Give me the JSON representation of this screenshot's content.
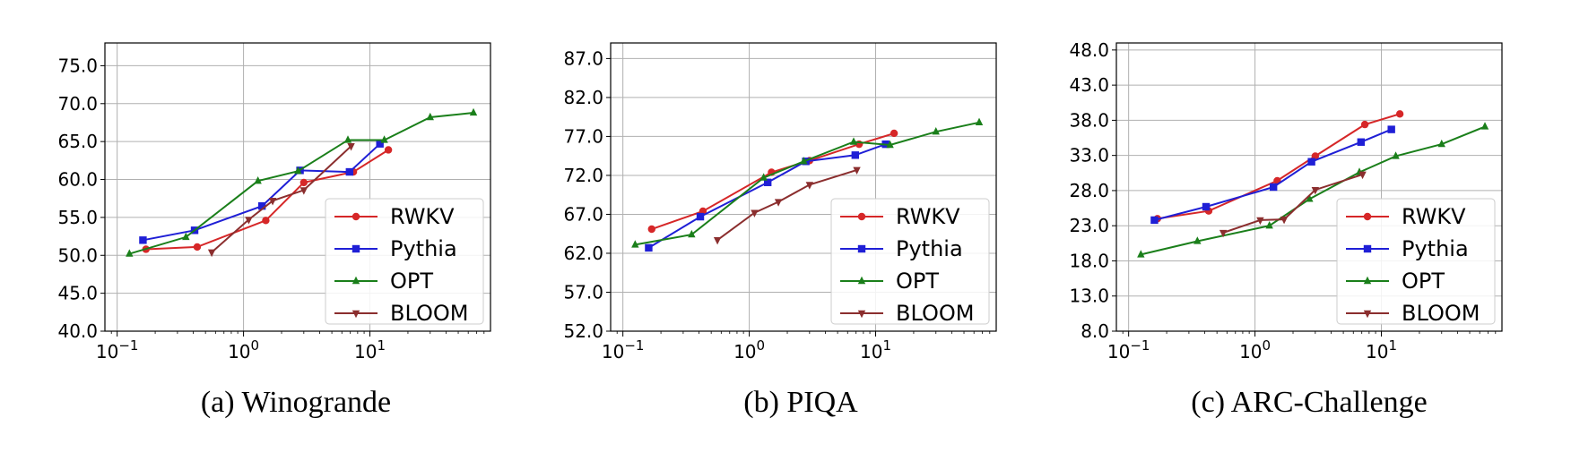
{
  "colors": {
    "RWKV": "#d62728",
    "Pythia": "#1f1fd6",
    "OPT": "#1a7f1a",
    "BLOOM": "#8b2e2e"
  },
  "chart_data": [
    {
      "type": "line",
      "caption": "(a) Winogrande",
      "xscale": "log",
      "xlim": [
        0.08,
        90
      ],
      "ylim": [
        40,
        78
      ],
      "x_ticks": [
        0.1,
        1,
        10
      ],
      "x_tick_labels": [
        [
          "10",
          "−1"
        ],
        [
          "10",
          "0"
        ],
        [
          "10",
          "1"
        ]
      ],
      "y_ticks": [
        "40.0",
        "45.0",
        "50.0",
        "55.0",
        "60.0",
        "65.0",
        "70.0",
        "75.0"
      ],
      "grid": true,
      "legend_position": "lower right",
      "series": [
        {
          "name": "RWKV",
          "marker": "circle",
          "x": [
            0.169,
            0.43,
            1.5,
            3.0,
            7.4,
            14.0
          ],
          "y": [
            50.8,
            51.1,
            54.6,
            59.6,
            61.0,
            63.9
          ]
        },
        {
          "name": "Pythia",
          "marker": "square",
          "x": [
            0.16,
            0.41,
            1.4,
            2.8,
            6.9,
            12.0
          ],
          "y": [
            52.0,
            53.3,
            56.5,
            61.2,
            61.0,
            64.7
          ]
        },
        {
          "name": "OPT",
          "marker": "triangle-up",
          "x": [
            0.125,
            0.35,
            1.3,
            2.7,
            6.7,
            13.0,
            30.0,
            66.0
          ],
          "y": [
            50.2,
            52.4,
            59.8,
            61.1,
            65.2,
            65.2,
            68.2,
            68.8
          ]
        },
        {
          "name": "BLOOM",
          "marker": "triangle-down",
          "x": [
            0.56,
            1.1,
            1.7,
            3.0,
            7.1
          ],
          "y": [
            50.4,
            54.7,
            57.2,
            58.6,
            64.4
          ]
        }
      ]
    },
    {
      "type": "line",
      "caption": "(b) PIQA",
      "xscale": "log",
      "xlim": [
        0.08,
        90
      ],
      "ylim": [
        52,
        89
      ],
      "x_ticks": [
        0.1,
        1,
        10
      ],
      "x_tick_labels": [
        [
          "10",
          "−1"
        ],
        [
          "10",
          "0"
        ],
        [
          "10",
          "1"
        ]
      ],
      "y_ticks": [
        "52.0",
        "57.0",
        "62.0",
        "67.0",
        "72.0",
        "77.0",
        "82.0",
        "87.0"
      ],
      "grid": true,
      "legend_position": "lower right",
      "series": [
        {
          "name": "RWKV",
          "marker": "circle",
          "x": [
            0.169,
            0.43,
            1.5,
            3.0,
            7.4,
            14.0
          ],
          "y": [
            65.1,
            67.4,
            72.4,
            73.9,
            76.0,
            77.4
          ]
        },
        {
          "name": "Pythia",
          "marker": "square",
          "x": [
            0.16,
            0.41,
            1.4,
            2.8,
            6.9,
            12.0
          ],
          "y": [
            62.7,
            66.7,
            71.1,
            73.8,
            74.6,
            76.0
          ]
        },
        {
          "name": "OPT",
          "marker": "triangle-up",
          "x": [
            0.125,
            0.35,
            1.3,
            2.7,
            6.7,
            13.0,
            30.0,
            66.0
          ],
          "y": [
            63.1,
            64.4,
            71.7,
            73.8,
            76.3,
            75.9,
            77.6,
            78.8
          ]
        },
        {
          "name": "BLOOM",
          "marker": "triangle-down",
          "x": [
            0.56,
            1.1,
            1.7,
            3.0,
            7.1
          ],
          "y": [
            63.7,
            67.2,
            68.6,
            70.8,
            72.7
          ]
        }
      ]
    },
    {
      "type": "line",
      "caption": "(c) ARC-Challenge",
      "xscale": "log",
      "xlim": [
        0.08,
        90
      ],
      "ylim": [
        8,
        49
      ],
      "x_ticks": [
        0.1,
        1,
        10
      ],
      "x_tick_labels": [
        [
          "10",
          "−1"
        ],
        [
          "10",
          "0"
        ],
        [
          "10",
          "1"
        ]
      ],
      "y_ticks": [
        "8.0",
        "13.0",
        "18.0",
        "23.0",
        "28.0",
        "33.0",
        "38.0",
        "43.0",
        "48.0"
      ],
      "grid": true,
      "legend_position": "lower right",
      "series": [
        {
          "name": "RWKV",
          "marker": "circle",
          "x": [
            0.169,
            0.43,
            1.5,
            3.0,
            7.4,
            14.0
          ],
          "y": [
            24.0,
            25.1,
            29.4,
            32.9,
            37.4,
            38.9
          ]
        },
        {
          "name": "Pythia",
          "marker": "square",
          "x": [
            0.16,
            0.41,
            1.4,
            2.8,
            6.9,
            12.0
          ],
          "y": [
            23.8,
            25.7,
            28.5,
            32.1,
            34.9,
            36.7
          ]
        },
        {
          "name": "OPT",
          "marker": "triangle-up",
          "x": [
            0.125,
            0.35,
            1.3,
            2.7,
            6.7,
            13.0,
            30.0,
            66.0
          ],
          "y": [
            18.9,
            20.8,
            23.0,
            26.8,
            30.6,
            32.9,
            34.6,
            37.1
          ]
        },
        {
          "name": "BLOOM",
          "marker": "triangle-down",
          "x": [
            0.56,
            1.1,
            1.7,
            3.0,
            7.1
          ],
          "y": [
            22.0,
            23.8,
            23.9,
            28.1,
            30.3
          ]
        }
      ]
    }
  ]
}
